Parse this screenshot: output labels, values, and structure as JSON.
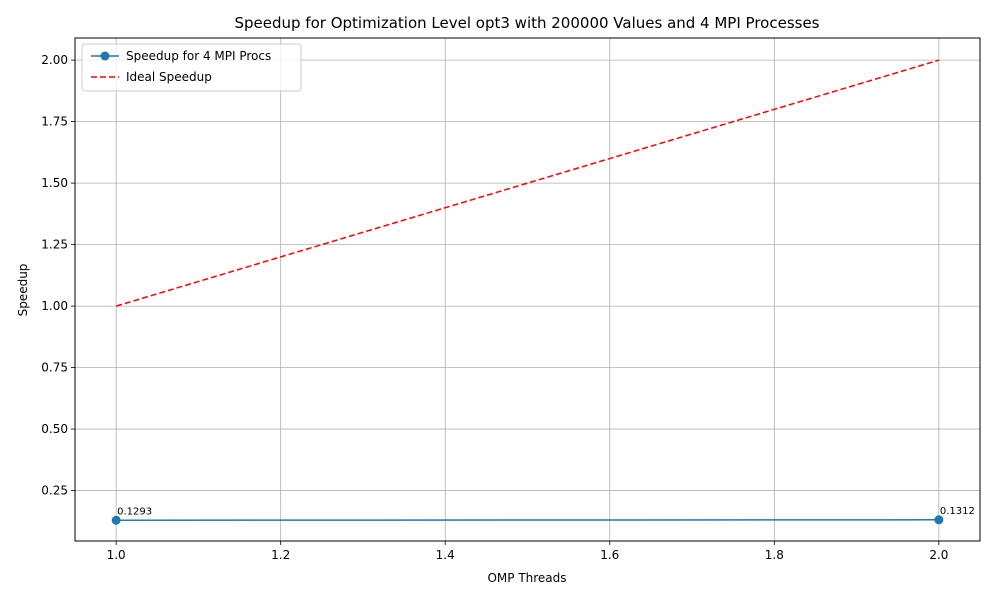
{
  "chart_data": {
    "type": "line",
    "title": "Speedup for Optimization Level opt3 with 200000 Values and 4 MPI Processes",
    "xlabel": "OMP Threads",
    "ylabel": "Speedup",
    "xlim": [
      0.95,
      2.05
    ],
    "ylim": [
      0.045,
      2.09
    ],
    "xticks": [
      "1.0",
      "1.2",
      "1.4",
      "1.6",
      "1.8",
      "2.0"
    ],
    "yticks": [
      "0.25",
      "0.50",
      "0.75",
      "1.00",
      "1.25",
      "1.50",
      "1.75",
      "2.00"
    ],
    "grid": true,
    "legend_position": "top-left",
    "series": [
      {
        "name": "Speedup for 4 MPI Procs",
        "x": [
          1,
          2
        ],
        "y": [
          0.1293,
          0.1312
        ],
        "color": "#1f77b4",
        "style": "solid",
        "marker": "circle",
        "labels": [
          "0.1293",
          "0.1312"
        ]
      },
      {
        "name": "Ideal Speedup",
        "x": [
          1,
          2
        ],
        "y": [
          1,
          2
        ],
        "color": "#ff0000",
        "style": "dashed",
        "marker": "none"
      }
    ]
  }
}
